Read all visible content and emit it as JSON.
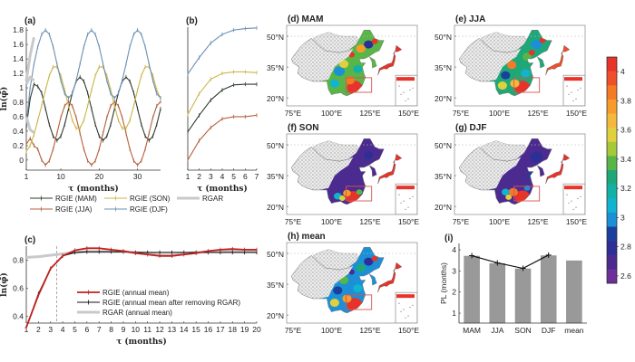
{
  "series_colors": {
    "MAM": "#2e3b2e",
    "JJA": "#b4603c",
    "SON": "#cbb54a",
    "DJF": "#6b90b3",
    "RGAR": "#c9c9c9",
    "annual_red": "#c0201e",
    "annual_black": "#111111"
  },
  "chart_data": [
    {
      "panel": "(a)",
      "type": "line",
      "xlabel": "τ (months)",
      "ylabel": "ln(φ̄)",
      "xlim": [
        1,
        36
      ],
      "ylim": [
        -0.14,
        1.84
      ],
      "xticks": [
        1,
        10,
        20,
        30
      ],
      "yticks": [
        0,
        0.2,
        0.4,
        0.6,
        0.8,
        1,
        1.2,
        1.4,
        1.6,
        1.8
      ],
      "ytick_labels": [
        "0",
        "0.2",
        "0.4",
        "0.6",
        "0.8",
        "1",
        "1.2",
        "1.4",
        "1.6",
        "1.8"
      ],
      "series": [
        {
          "name": "RGIE (MAM)",
          "key": "MAM",
          "values": [
            0.45,
            0.85,
            1.05,
            1.02,
            0.93,
            0.71,
            0.49,
            0.33,
            0.27,
            0.33,
            0.49,
            0.71,
            0.93,
            1.09,
            1.15,
            1.09,
            0.93,
            0.71,
            0.49,
            0.33,
            0.27,
            0.33,
            0.49,
            0.71,
            0.93,
            1.09,
            1.15,
            1.09,
            0.93,
            0.71,
            0.49,
            0.33,
            0.27,
            0.33,
            0.49,
            0.71
          ]
        },
        {
          "name": "RGIE (JJA)",
          "key": "JJA",
          "values": [
            0.22,
            0.3,
            0.2,
            0.15,
            0.0,
            -0.07,
            -0.01,
            0.15,
            0.37,
            0.59,
            0.75,
            0.81,
            0.75,
            0.59,
            0.37,
            0.15,
            -0.01,
            -0.07,
            -0.01,
            0.15,
            0.37,
            0.59,
            0.75,
            0.81,
            0.75,
            0.59,
            0.37,
            0.15,
            -0.01,
            -0.07,
            -0.01,
            0.15,
            0.37,
            0.59,
            0.75,
            0.81
          ]
        },
        {
          "name": "RGIE (SON)",
          "key": "SON",
          "values": [
            0.12,
            0.2,
            0.35,
            0.55,
            0.75,
            0.97,
            1.17,
            1.29,
            1.29,
            1.17,
            0.97,
            0.75,
            0.55,
            0.44,
            0.44,
            0.55,
            0.75,
            0.97,
            1.17,
            1.29,
            1.29,
            1.17,
            0.97,
            0.75,
            0.55,
            0.44,
            0.44,
            0.55,
            0.75,
            0.97,
            1.17,
            1.29,
            1.29,
            1.17,
            0.97,
            0.85
          ]
        },
        {
          "name": "RGIE (DJF)",
          "key": "DJF",
          "values": [
            0.5,
            1.0,
            1.33,
            1.57,
            1.74,
            1.8,
            1.74,
            1.57,
            1.33,
            1.1,
            0.92,
            0.86,
            0.92,
            1.1,
            1.33,
            1.57,
            1.74,
            1.8,
            1.74,
            1.57,
            1.33,
            1.1,
            0.92,
            0.86,
            0.92,
            1.1,
            1.33,
            1.57,
            1.74,
            1.8,
            1.74,
            1.57,
            1.33,
            1.1,
            0.92,
            0.86
          ]
        },
        {
          "name": "RGAR",
          "key": "RGAR",
          "segments": [
            [
              0.6,
              0.42,
              0.38
            ],
            [
              1.05,
              1.15,
              1.1
            ],
            [
              1.1,
              1.45,
              1.7
            ]
          ]
        }
      ],
      "legend": [
        "RGIE (MAM)",
        "RGIE (SON)",
        "RGAR",
        "RGIE (JJA)",
        "RGIE (DJF)"
      ]
    },
    {
      "panel": "(b)",
      "type": "line",
      "xlabel": "τ (months)",
      "xlim": [
        1,
        7
      ],
      "ylim": [
        -0.14,
        1.84
      ],
      "xticks": [
        1,
        2,
        3,
        4,
        5,
        6,
        7
      ],
      "series": [
        {
          "name": "RGIE (DJF)",
          "key": "DJF",
          "values": [
            1.19,
            1.42,
            1.62,
            1.74,
            1.8,
            1.82,
            1.83
          ]
        },
        {
          "name": "RGIE (SON)",
          "key": "SON",
          "values": [
            0.63,
            0.92,
            1.12,
            1.2,
            1.22,
            1.22,
            1.21
          ]
        },
        {
          "name": "RGIE (MAM)",
          "key": "MAM",
          "values": [
            0.39,
            0.62,
            0.83,
            0.97,
            1.04,
            1.05,
            1.05
          ]
        },
        {
          "name": "RGIE (JJA)",
          "key": "JJA",
          "values": [
            0.0,
            0.27,
            0.45,
            0.57,
            0.6,
            0.6,
            0.62
          ]
        }
      ]
    },
    {
      "panel": "(c)",
      "type": "line",
      "xlabel": "τ (months)",
      "ylabel": "ln(φ̄)",
      "xlim": [
        1,
        20
      ],
      "ylim": [
        0.35,
        0.9
      ],
      "xticks": [
        1,
        2,
        3,
        4,
        5,
        6,
        7,
        8,
        9,
        10,
        11,
        12,
        13,
        14,
        15,
        16,
        17,
        18,
        19,
        20
      ],
      "yticks": [
        0.4,
        0.6,
        0.8
      ],
      "vline": 3.5,
      "series": [
        {
          "name": "RGAR (annual mean)",
          "key": "RGAR",
          "values": [
            0.82,
            0.825,
            0.835,
            0.845,
            0.855,
            0.86,
            0.86,
            0.86,
            0.86,
            0.855,
            0.85,
            0.835,
            0.835,
            0.845,
            0.855,
            0.86,
            0.865,
            0.865,
            0.865,
            0.865
          ]
        },
        {
          "name": "RGIE (annual mean after removing RGAR)",
          "key": "annual_black",
          "values": [
            0.32,
            0.56,
            0.74,
            0.83,
            0.855,
            0.86,
            0.86,
            0.86,
            0.86,
            0.855,
            0.855,
            0.855,
            0.855,
            0.855,
            0.855,
            0.855,
            0.855,
            0.855,
            0.855,
            0.855
          ]
        },
        {
          "name": "RGIE (annual mean)",
          "key": "annual_red",
          "values": [
            0.32,
            0.55,
            0.74,
            0.83,
            0.87,
            0.885,
            0.885,
            0.875,
            0.865,
            0.85,
            0.84,
            0.83,
            0.83,
            0.84,
            0.85,
            0.865,
            0.875,
            0.88,
            0.875,
            0.875
          ]
        }
      ],
      "legend": [
        "RGIE (annual mean)",
        "RGIE (annual mean after removing RGAR)",
        "RGAR (annual mean)"
      ]
    },
    {
      "panel": "(i)",
      "type": "bar",
      "ylabel": "PL (months)",
      "categories": [
        "MAM",
        "JJA",
        "SON",
        "DJF",
        "mean"
      ],
      "values": [
        3.7,
        3.35,
        3.1,
        3.72,
        3.48
      ],
      "line_values": [
        3.72,
        3.38,
        3.12,
        3.75
      ],
      "ylim": [
        0.53,
        4.3
      ],
      "yticks": [
        1,
        2,
        3,
        4
      ],
      "bar_color": "#999999"
    }
  ],
  "maps": [
    {
      "title": "(d) MAM",
      "scheme": "MAM"
    },
    {
      "title": "(e) JJA",
      "scheme": "JJA"
    },
    {
      "title": "(f) SON",
      "scheme": "SON"
    },
    {
      "title": "(g) DJF",
      "scheme": "DJF"
    },
    {
      "title": "(h) mean",
      "scheme": "mean"
    }
  ],
  "map_axes": {
    "lat_labels": [
      "50°N",
      "35°N",
      "20°N"
    ],
    "lat_values": [
      50,
      35,
      20
    ],
    "lon_labels": [
      "75°E",
      "100°E",
      "125°E",
      "150°E"
    ],
    "lon_values": [
      75,
      100,
      125,
      150
    ]
  },
  "colorbar": {
    "range": [
      2.55,
      4.1
    ],
    "ticks": [
      2.6,
      2.8,
      3,
      3.2,
      3.4,
      3.6,
      3.8,
      4
    ],
    "tick_labels": [
      "2.6",
      "2.8",
      "3",
      "3.2",
      "3.4",
      "3.6",
      "3.8",
      "4"
    ],
    "colors": [
      "#e8332a",
      "#ef4f2b",
      "#f47a25",
      "#f79b2b",
      "#f4b83a",
      "#e0d03e",
      "#a6c83a",
      "#58b547",
      "#1fa877",
      "#13b0a6",
      "#10b4cf",
      "#1b90d7",
      "#1c3f9d",
      "#2d2f96",
      "#4b2b90",
      "#6d2f99"
    ]
  }
}
